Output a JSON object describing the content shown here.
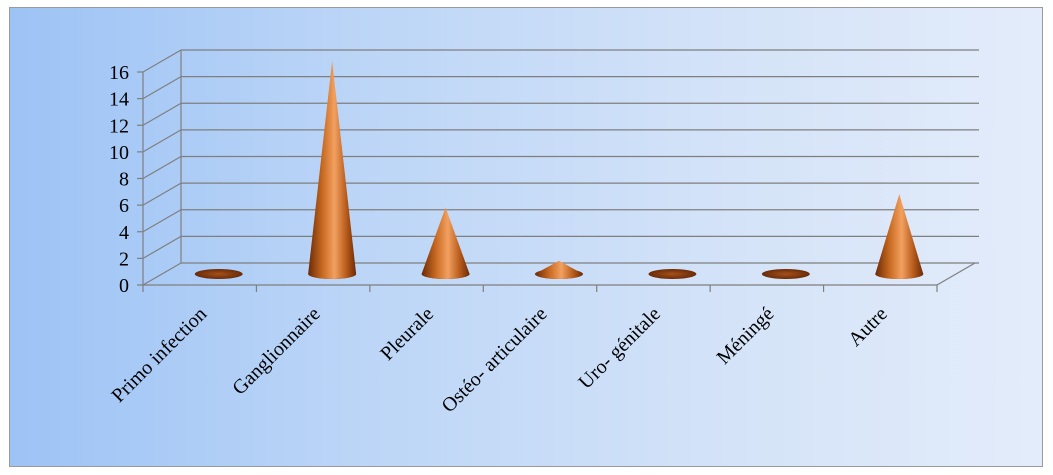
{
  "chart_data": {
    "type": "bar",
    "bar_shape": "cone-3d",
    "categories": [
      "Primo infection",
      "Ganglionnaire",
      "Pleurale",
      "Ostéo- articulaire",
      "Uro- génitale",
      "Méningé",
      "Autre"
    ],
    "values": [
      0,
      16,
      5,
      1,
      0,
      0,
      6
    ],
    "y_ticks": [
      "0",
      "2",
      "4",
      "6",
      "8",
      "10",
      "12",
      "14",
      "16"
    ],
    "ylim": [
      0,
      16
    ],
    "grid": true,
    "legend": "none",
    "colors": {
      "cone_dark": "#6b2a06",
      "cone_mid": "#c86a22",
      "cone_light": "#f2a060",
      "grid": "#7f7f7f"
    }
  }
}
